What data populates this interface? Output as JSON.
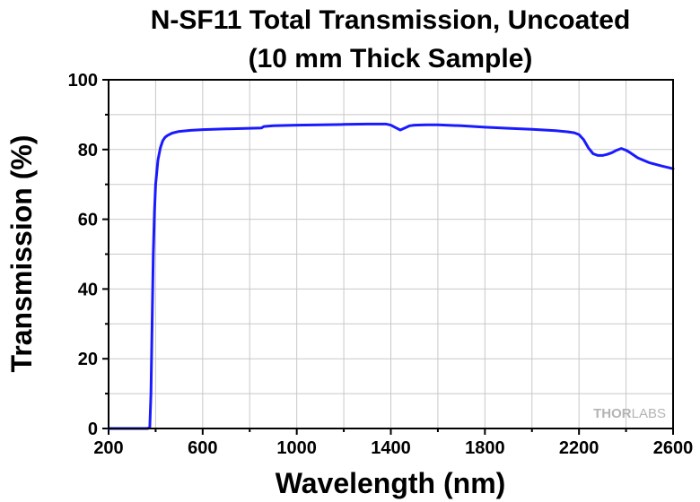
{
  "chart_data": {
    "type": "line",
    "title_line1": "N-SF11 Total Transmission, Uncoated",
    "title_line2": "(10 mm Thick Sample)",
    "xlabel": "Wavelength (nm)",
    "ylabel": "Transmission (%)",
    "xlim": [
      200,
      2600
    ],
    "ylim": [
      0,
      100
    ],
    "x_ticks": [
      200,
      600,
      1000,
      1400,
      1800,
      2200,
      2600
    ],
    "y_ticks": [
      0,
      20,
      40,
      60,
      80,
      100
    ],
    "grid": true,
    "series_color": "#1a1aff",
    "watermark_bold": "THOR",
    "watermark_light": "LABS",
    "series": [
      {
        "x": [
          200,
          300,
          365,
          375,
          380,
          385,
          390,
          395,
          400,
          410,
          420,
          430,
          440,
          450,
          470,
          500,
          550,
          600,
          700,
          800,
          850,
          860,
          900,
          1000,
          1100,
          1200,
          1300,
          1380,
          1400,
          1420,
          1440,
          1460,
          1480,
          1500,
          1550,
          1600,
          1700,
          1800,
          1900,
          2000,
          2100,
          2150,
          2180,
          2200,
          2220,
          2240,
          2260,
          2280,
          2300,
          2320,
          2340,
          2360,
          2380,
          2400,
          2420,
          2450,
          2500,
          2550,
          2600
        ],
        "y": [
          0,
          0,
          0,
          0.2,
          10,
          30,
          50,
          62,
          70,
          77,
          80.5,
          82.5,
          83.5,
          84,
          84.7,
          85.2,
          85.5,
          85.7,
          85.9,
          86.1,
          86.2,
          86.6,
          86.8,
          87,
          87.1,
          87.2,
          87.3,
          87.3,
          87,
          86.3,
          85.6,
          86.2,
          86.8,
          87,
          87.1,
          87.1,
          86.8,
          86.4,
          86.1,
          85.8,
          85.4,
          85.1,
          84.8,
          84.3,
          82.8,
          80.5,
          78.8,
          78.3,
          78.3,
          78.6,
          79.1,
          79.8,
          80.3,
          79.8,
          79,
          77.6,
          76.2,
          75.3,
          74.5
        ]
      }
    ]
  }
}
